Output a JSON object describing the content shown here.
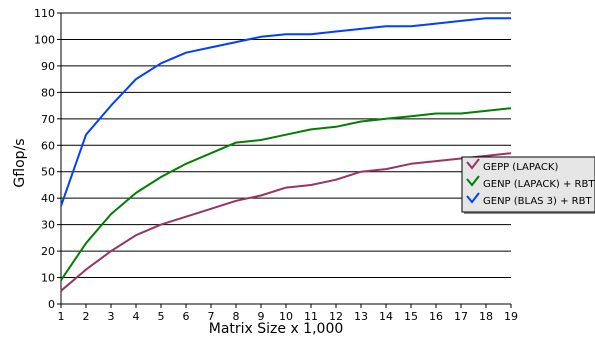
{
  "chart_data": {
    "type": "line",
    "title": "",
    "xlabel": "Matrix Size x 1,000",
    "ylabel": "Gflop/s",
    "xlim": [
      1,
      19
    ],
    "ylim": [
      0,
      110
    ],
    "x_ticks": [
      "1",
      "2",
      "3",
      "4",
      "5",
      "6",
      "7",
      "8",
      "9",
      "10",
      "11",
      "12",
      "13",
      "14",
      "15",
      "16",
      "17",
      "18",
      "19"
    ],
    "y_ticks": [
      "0",
      "10",
      "20",
      "30",
      "40",
      "50",
      "60",
      "70",
      "80",
      "90",
      "100",
      "110"
    ],
    "grid": "horizontal",
    "legend_placement": "right",
    "x": [
      1,
      2,
      3,
      4,
      5,
      6,
      7,
      8,
      9,
      10,
      11,
      12,
      13,
      14,
      15,
      16,
      17,
      18,
      19
    ],
    "series": [
      {
        "name": "GEPP (LAPACK)",
        "color": "#993366",
        "values": [
          5,
          13,
          20,
          26,
          30,
          33,
          36,
          39,
          41,
          44,
          45,
          47,
          50,
          51,
          53,
          54,
          55,
          56,
          57
        ]
      },
      {
        "name": "GENP (LAPACK) + RBT",
        "color": "#008000",
        "values": [
          9,
          23,
          34,
          42,
          48,
          53,
          57,
          61,
          62,
          64,
          66,
          67,
          69,
          70,
          71,
          72,
          72,
          73,
          74
        ]
      },
      {
        "name": "GENP (BLAS 3) + RBT",
        "color": "#0040ff",
        "values": [
          37,
          64,
          75,
          85,
          91,
          95,
          97,
          99,
          101,
          102,
          102,
          103,
          104,
          105,
          105,
          106,
          107,
          108,
          108
        ]
      }
    ]
  }
}
